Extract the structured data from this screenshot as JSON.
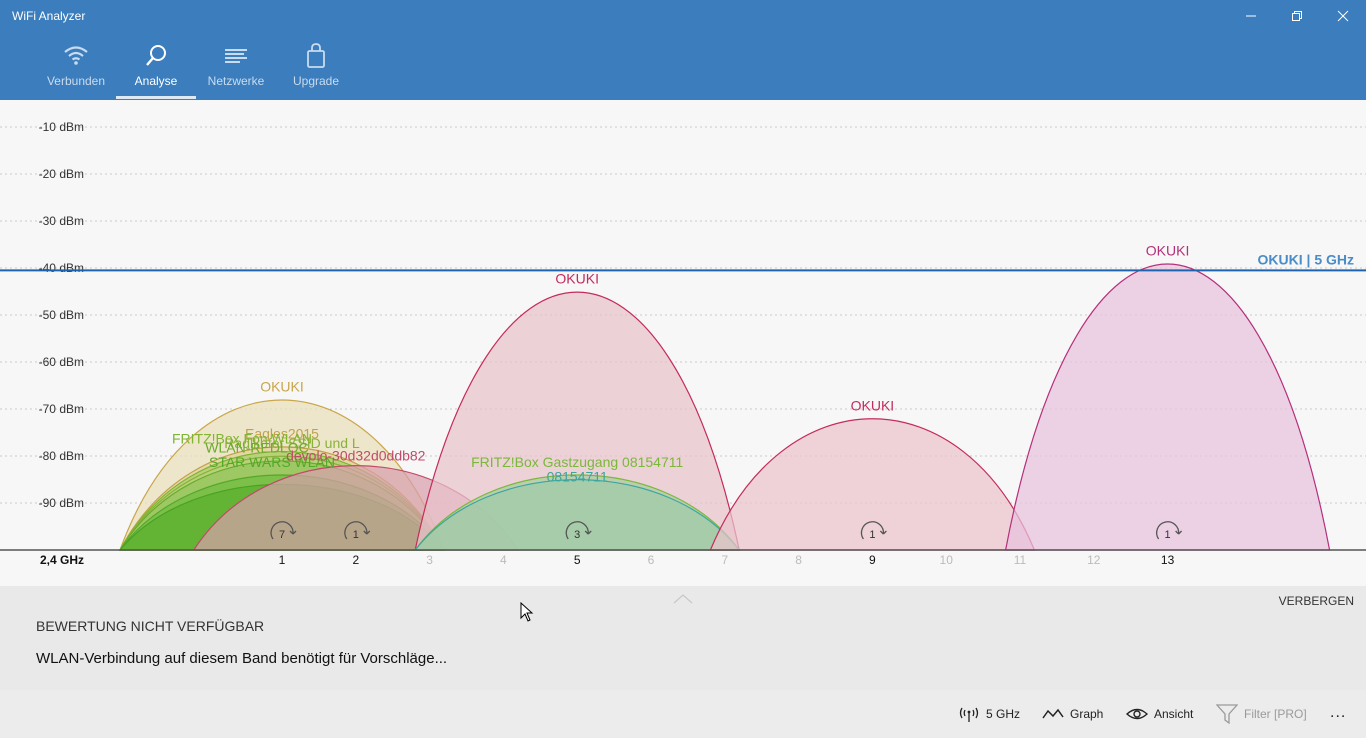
{
  "window": {
    "title": "WiFi Analyzer",
    "minimize_icon": "minimize-icon",
    "restore_icon": "restore-icon",
    "close_icon": "close-icon"
  },
  "nav": {
    "tabs": [
      {
        "label": "Verbunden",
        "icon": "wifi-icon",
        "active": false
      },
      {
        "label": "Analyse",
        "icon": "magnifier-icon",
        "active": true
      },
      {
        "label": "Netzwerke",
        "icon": "list-lines-icon",
        "active": false
      },
      {
        "label": "Upgrade",
        "icon": "shopping-bag-icon",
        "active": false
      }
    ]
  },
  "chart_data": {
    "type": "area",
    "band_label": "2,4 GHz",
    "y_ticks": [
      "-10 dBm",
      "-20 dBm",
      "-30 dBm",
      "-40 dBm",
      "-50 dBm",
      "-60 dBm",
      "-70 dBm",
      "-80 dBm",
      "-90 dBm"
    ],
    "y_tick_values": [
      -10,
      -20,
      -30,
      -40,
      -50,
      -60,
      -70,
      -80,
      -90
    ],
    "ylim": [
      -100,
      -2
    ],
    "x_ticks": [
      "1",
      "2",
      "3",
      "4",
      "5",
      "6",
      "7",
      "8",
      "9",
      "10",
      "11",
      "12",
      "13"
    ],
    "active_channels": [
      1,
      2,
      5,
      9,
      13
    ],
    "channel_counts": [
      {
        "channel": 1,
        "count": "7"
      },
      {
        "channel": 2,
        "count": "1"
      },
      {
        "channel": 5,
        "count": "3"
      },
      {
        "channel": 9,
        "count": "1"
      },
      {
        "channel": 13,
        "count": "1"
      }
    ],
    "reference_line": {
      "label": "OKUKI | 5 GHz",
      "dbm": -40.5,
      "color": "#1e63b0"
    },
    "series": [
      {
        "name": "OKUKI",
        "channel": 1,
        "dbm": -68,
        "color": "#c9a64a",
        "fill": "#e9dfba"
      },
      {
        "name": "Eagles2015",
        "channel": 1,
        "dbm": -78,
        "color": "#c2a14c",
        "fill": "#e3d19a"
      },
      {
        "name": "FRITZ!Box Fon WLAN",
        "channel": 1,
        "dbm": -79,
        "color": "#7fb52f",
        "fill": "#a9cf6b"
      },
      {
        "name": "Radlkofer SSID und L",
        "channel": 1,
        "dbm": -80,
        "color": "#8ab13a",
        "fill": "#b7d37a"
      },
      {
        "name": "WLAN-REDLOC",
        "channel": 1,
        "dbm": -81,
        "color": "#6aab2c",
        "fill": "#93c45b"
      },
      {
        "name": "STAR WARS WLAN",
        "channel": 1,
        "dbm": -84,
        "color": "#54a829",
        "fill": "#6fbb3f"
      },
      {
        "name": "",
        "channel": 1,
        "dbm": -86,
        "color": "#48a322",
        "fill": "#5aae2e"
      },
      {
        "name": "devolo-30d32d0ddb82",
        "channel": 2,
        "dbm": -82,
        "color": "#c24a6a",
        "fill": "#d8a0ac"
      },
      {
        "name": "OKUKI",
        "channel": 5,
        "dbm": -45,
        "color": "#c42c5c",
        "fill": "#e7c2ca"
      },
      {
        "name": "FRITZ!Box Gastzugang 08154711",
        "channel": 5,
        "dbm": -84,
        "color": "#7ab83a",
        "fill": "#a7cfa0"
      },
      {
        "name": "08154711",
        "channel": 5,
        "dbm": -85,
        "color": "#3aa6a0",
        "fill": "#9fcaa8"
      },
      {
        "name": "OKUKI",
        "channel": 9,
        "dbm": -72,
        "color": "#c42c5c",
        "fill": "#eac3cc"
      },
      {
        "name": "OKUKI",
        "channel": 13,
        "dbm": -39,
        "color": "#b5307a",
        "fill": "#e7c0dc"
      }
    ]
  },
  "panel": {
    "hide_label": "VERBERGEN",
    "rating": "BEWERTUNG NICHT VERFÜGBAR",
    "message": "WLAN-Verbindung auf diesem Band benötigt für Vorschläge..."
  },
  "commands": {
    "band": {
      "label": "5 GHz",
      "icon": "antenna-icon"
    },
    "graph": {
      "label": "Graph",
      "icon": "graph-icon"
    },
    "view": {
      "label": "Ansicht",
      "icon": "eye-icon"
    },
    "filter": {
      "label": "Filter [PRO]",
      "icon": "filter-icon",
      "disabled": true
    },
    "more": "..."
  }
}
